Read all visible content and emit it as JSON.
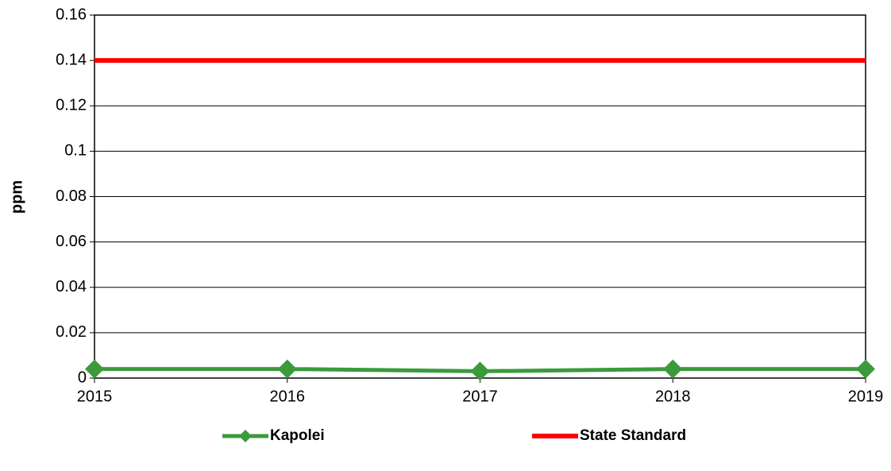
{
  "chart_data": {
    "type": "line",
    "y_label": "ppm",
    "x": [
      2015,
      2016,
      2017,
      2018,
      2019
    ],
    "xlim": [
      2015,
      2019
    ],
    "xticks": [
      2015,
      2016,
      2017,
      2018,
      2019
    ],
    "ylim": [
      0,
      0.16
    ],
    "yticks": [
      0,
      0.02,
      0.04,
      0.06,
      0.08,
      0.1,
      0.12,
      0.14,
      0.16
    ],
    "grid": true,
    "legend": "bottom",
    "series": [
      {
        "name": "Kapolei",
        "color": "#3c9a3c",
        "marker": "diamond",
        "values": [
          0.004,
          0.004,
          0.003,
          0.004,
          0.004
        ]
      },
      {
        "name": "State Standard",
        "color": "#ff0000",
        "marker": "none",
        "values": [
          0.14,
          0.14,
          0.14,
          0.14,
          0.14
        ]
      }
    ]
  }
}
